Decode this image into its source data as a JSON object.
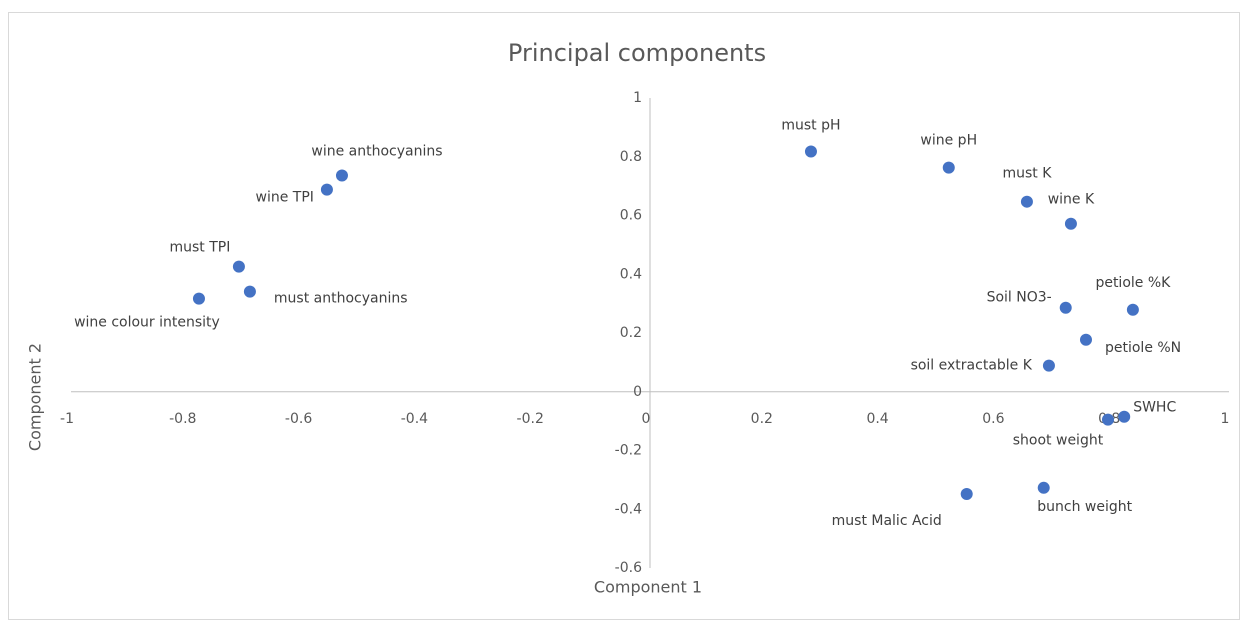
{
  "chart_data": {
    "type": "scatter",
    "title": "Principal components",
    "xlabel": "Component 1",
    "ylabel": "Component 2",
    "color": "#4472c4",
    "labels": [
      "must pH",
      "wine pH",
      "must K",
      "wine K",
      "petiole %K",
      "Soil NO3-",
      "petiole %N",
      "soil extractable K",
      "SWHC",
      "shoot weight",
      "bunch weight",
      "must Malic Acid",
      "wine anthocyanins",
      "wine TPI",
      "must TPI",
      "must anthocyanins",
      "wine colour intensity"
    ],
    "x": [
      0.278,
      0.516,
      0.651,
      0.727,
      0.834,
      0.718,
      0.753,
      0.689,
      0.819,
      0.791,
      0.68,
      0.547,
      -0.532,
      -0.558,
      -0.71,
      -0.691,
      -0.779
    ],
    "values": [
      0.818,
      0.763,
      0.647,
      0.572,
      0.279,
      0.286,
      0.177,
      0.089,
      -0.085,
      -0.095,
      -0.327,
      -0.348,
      0.736,
      0.688,
      0.426,
      0.341,
      0.317
    ],
    "xlim": [
      -1,
      1
    ],
    "ylim": [
      -0.6,
      1
    ],
    "xticks": [
      -1,
      -0.8,
      -0.6,
      -0.4,
      -0.2,
      0,
      0.2,
      0.4,
      0.6,
      0.8,
      1
    ],
    "yticks": [
      -0.6,
      -0.4,
      -0.2,
      0,
      0.2,
      0.4,
      0.6,
      0.8,
      1
    ]
  }
}
